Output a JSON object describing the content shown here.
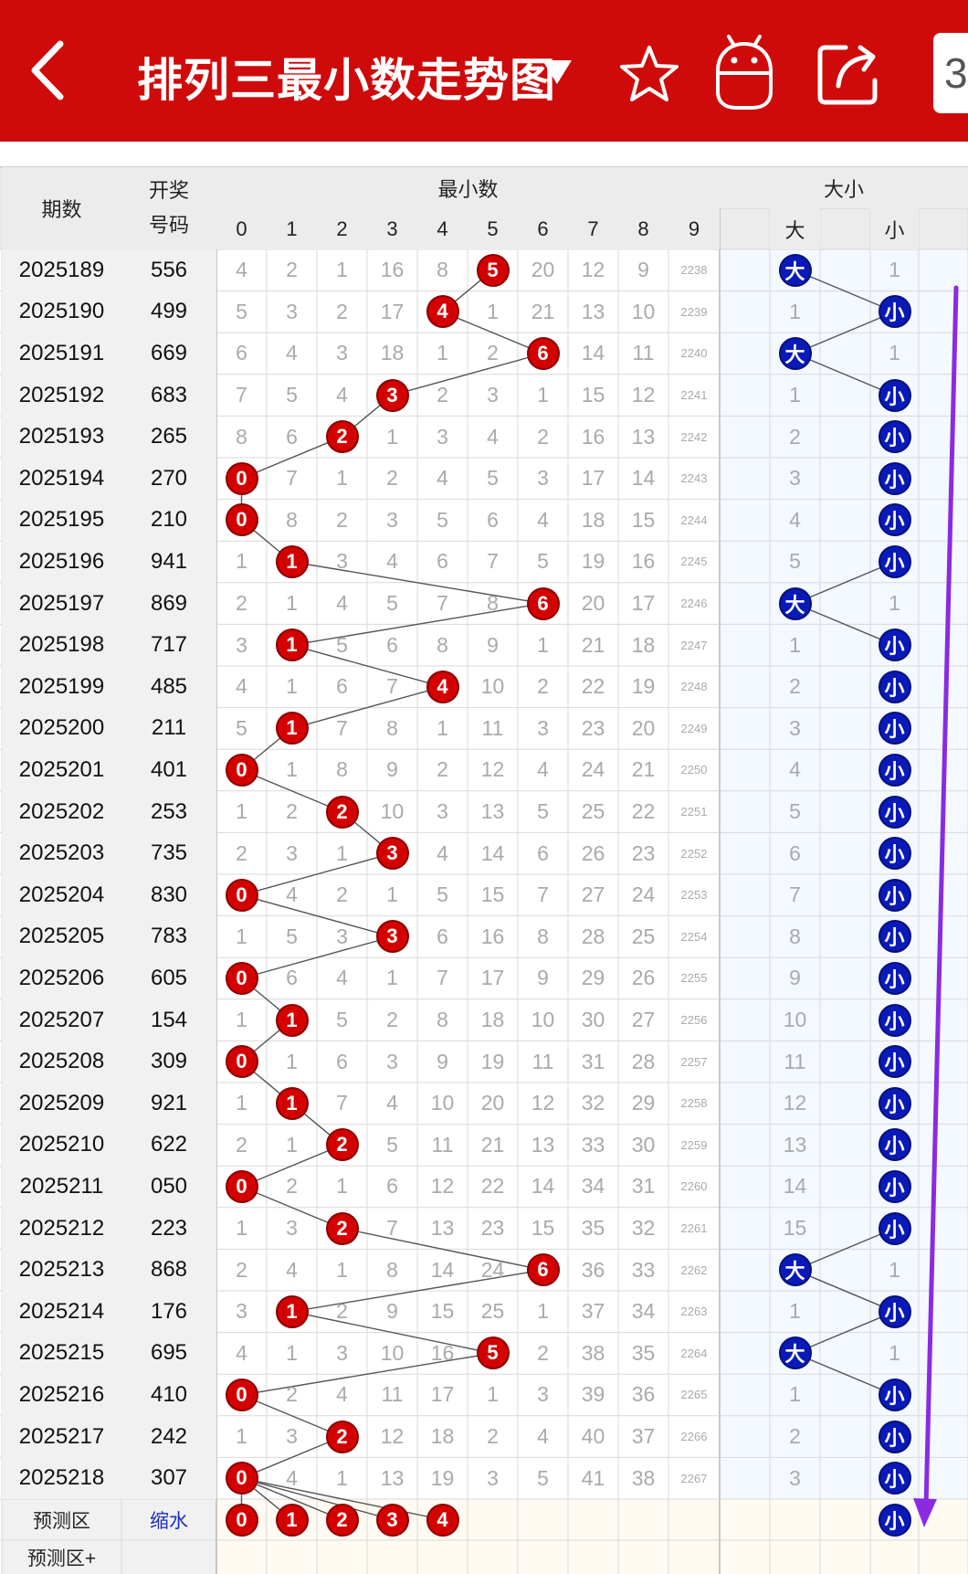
{
  "header": {
    "title": "排列三最小数走势图",
    "menu_chip": "3",
    "colors": {
      "bar": "#cf0a0a"
    },
    "icons": [
      "back-arrow-icon",
      "dropdown-caret-icon",
      "star-icon",
      "android-robot-icon",
      "share-icon"
    ]
  },
  "table": {
    "col_issue": "期数",
    "col_number_line1": "开奖",
    "col_number_line2": "号码",
    "group_min": "最小数",
    "group_size": "大小",
    "min_digits": [
      "0",
      "1",
      "2",
      "3",
      "4",
      "5",
      "6",
      "7",
      "8",
      "9"
    ],
    "size_labels": [
      "大",
      "小"
    ],
    "rows": [
      {
        "issue": "2025189",
        "number": "556",
        "min": 5,
        "miss": [
          4,
          2,
          1,
          16,
          8,
          null,
          20,
          12,
          9,
          2238
        ],
        "size": "大",
        "size_miss": 1
      },
      {
        "issue": "2025190",
        "number": "499",
        "min": 4,
        "miss": [
          5,
          3,
          2,
          17,
          null,
          1,
          21,
          13,
          10,
          2239
        ],
        "size": "小",
        "size_miss": 1
      },
      {
        "issue": "2025191",
        "number": "669",
        "min": 6,
        "miss": [
          6,
          4,
          3,
          18,
          1,
          2,
          null,
          14,
          11,
          2240
        ],
        "size": "大",
        "size_miss": 1
      },
      {
        "issue": "2025192",
        "number": "683",
        "min": 3,
        "miss": [
          7,
          5,
          4,
          null,
          2,
          3,
          1,
          15,
          12,
          2241
        ],
        "size": "小",
        "size_miss": 1
      },
      {
        "issue": "2025193",
        "number": "265",
        "min": 2,
        "miss": [
          8,
          6,
          null,
          1,
          3,
          4,
          2,
          16,
          13,
          2242
        ],
        "size": "小",
        "size_miss": 2
      },
      {
        "issue": "2025194",
        "number": "270",
        "min": 0,
        "miss": [
          null,
          7,
          1,
          2,
          4,
          5,
          3,
          17,
          14,
          2243
        ],
        "size": "小",
        "size_miss": 3
      },
      {
        "issue": "2025195",
        "number": "210",
        "min": 0,
        "miss": [
          null,
          8,
          2,
          3,
          5,
          6,
          4,
          18,
          15,
          2244
        ],
        "size": "小",
        "size_miss": 4
      },
      {
        "issue": "2025196",
        "number": "941",
        "min": 1,
        "miss": [
          1,
          null,
          3,
          4,
          6,
          7,
          5,
          19,
          16,
          2245
        ],
        "size": "小",
        "size_miss": 5
      },
      {
        "issue": "2025197",
        "number": "869",
        "min": 6,
        "miss": [
          2,
          1,
          4,
          5,
          7,
          8,
          null,
          20,
          17,
          2246
        ],
        "size": "大",
        "size_miss": 1
      },
      {
        "issue": "2025198",
        "number": "717",
        "min": 1,
        "miss": [
          3,
          null,
          5,
          6,
          8,
          9,
          1,
          21,
          18,
          2247
        ],
        "size": "小",
        "size_miss": 1
      },
      {
        "issue": "2025199",
        "number": "485",
        "min": 4,
        "miss": [
          4,
          1,
          6,
          7,
          null,
          10,
          2,
          22,
          19,
          2248
        ],
        "size": "小",
        "size_miss": 2
      },
      {
        "issue": "2025200",
        "number": "211",
        "min": 1,
        "miss": [
          5,
          null,
          7,
          8,
          1,
          11,
          3,
          23,
          20,
          2249
        ],
        "size": "小",
        "size_miss": 3
      },
      {
        "issue": "2025201",
        "number": "401",
        "min": 0,
        "miss": [
          null,
          1,
          8,
          9,
          2,
          12,
          4,
          24,
          21,
          2250
        ],
        "size": "小",
        "size_miss": 4
      },
      {
        "issue": "2025202",
        "number": "253",
        "min": 2,
        "miss": [
          1,
          2,
          null,
          10,
          3,
          13,
          5,
          25,
          22,
          2251
        ],
        "size": "小",
        "size_miss": 5
      },
      {
        "issue": "2025203",
        "number": "735",
        "min": 3,
        "miss": [
          2,
          3,
          1,
          null,
          4,
          14,
          6,
          26,
          23,
          2252
        ],
        "size": "小",
        "size_miss": 6
      },
      {
        "issue": "2025204",
        "number": "830",
        "min": 0,
        "miss": [
          null,
          4,
          2,
          1,
          5,
          15,
          7,
          27,
          24,
          2253
        ],
        "size": "小",
        "size_miss": 7
      },
      {
        "issue": "2025205",
        "number": "783",
        "min": 3,
        "miss": [
          1,
          5,
          3,
          null,
          6,
          16,
          8,
          28,
          25,
          2254
        ],
        "size": "小",
        "size_miss": 8
      },
      {
        "issue": "2025206",
        "number": "605",
        "min": 0,
        "miss": [
          null,
          6,
          4,
          1,
          7,
          17,
          9,
          29,
          26,
          2255
        ],
        "size": "小",
        "size_miss": 9
      },
      {
        "issue": "2025207",
        "number": "154",
        "min": 1,
        "miss": [
          1,
          null,
          5,
          2,
          8,
          18,
          10,
          30,
          27,
          2256
        ],
        "size": "小",
        "size_miss": 10
      },
      {
        "issue": "2025208",
        "number": "309",
        "min": 0,
        "miss": [
          null,
          1,
          6,
          3,
          9,
          19,
          11,
          31,
          28,
          2257
        ],
        "size": "小",
        "size_miss": 11
      },
      {
        "issue": "2025209",
        "number": "921",
        "min": 1,
        "miss": [
          1,
          null,
          7,
          4,
          10,
          20,
          12,
          32,
          29,
          2258
        ],
        "size": "小",
        "size_miss": 12
      },
      {
        "issue": "2025210",
        "number": "622",
        "min": 2,
        "miss": [
          2,
          1,
          null,
          5,
          11,
          21,
          13,
          33,
          30,
          2259
        ],
        "size": "小",
        "size_miss": 13
      },
      {
        "issue": "2025211",
        "number": "050",
        "min": 0,
        "miss": [
          null,
          2,
          1,
          6,
          12,
          22,
          14,
          34,
          31,
          2260
        ],
        "size": "小",
        "size_miss": 14
      },
      {
        "issue": "2025212",
        "number": "223",
        "min": 2,
        "miss": [
          1,
          3,
          null,
          7,
          13,
          23,
          15,
          35,
          32,
          2261
        ],
        "size": "小",
        "size_miss": 15
      },
      {
        "issue": "2025213",
        "number": "868",
        "min": 6,
        "miss": [
          2,
          4,
          1,
          8,
          14,
          24,
          null,
          36,
          33,
          2262
        ],
        "size": "大",
        "size_miss": 1
      },
      {
        "issue": "2025214",
        "number": "176",
        "min": 1,
        "miss": [
          3,
          null,
          2,
          9,
          15,
          25,
          1,
          37,
          34,
          2263
        ],
        "size": "小",
        "size_miss": 1
      },
      {
        "issue": "2025215",
        "number": "695",
        "min": 5,
        "miss": [
          4,
          1,
          3,
          10,
          16,
          null,
          2,
          38,
          35,
          2264
        ],
        "size": "大",
        "size_miss": 1
      },
      {
        "issue": "2025216",
        "number": "410",
        "min": 0,
        "miss": [
          null,
          2,
          4,
          11,
          17,
          1,
          3,
          39,
          36,
          2265
        ],
        "size": "小",
        "size_miss": 1
      },
      {
        "issue": "2025217",
        "number": "242",
        "min": 2,
        "miss": [
          1,
          3,
          null,
          12,
          18,
          2,
          4,
          40,
          37,
          2266
        ],
        "size": "小",
        "size_miss": 2
      },
      {
        "issue": "2025218",
        "number": "307",
        "min": 0,
        "miss": [
          null,
          4,
          1,
          13,
          19,
          3,
          5,
          41,
          38,
          2267
        ],
        "size": "小",
        "size_miss": 3
      }
    ],
    "predict": {
      "label": "预测区",
      "shrink": "缩水",
      "balls": [
        "0",
        "1",
        "2",
        "3",
        "4"
      ],
      "size_ball": "小"
    },
    "predict_plus": {
      "label": "预测区+"
    }
  },
  "colors": {
    "red_ball": "#d40000",
    "blue_ball": "#0a1ab8",
    "annotation": "#8a2be2",
    "line": "#555555"
  }
}
